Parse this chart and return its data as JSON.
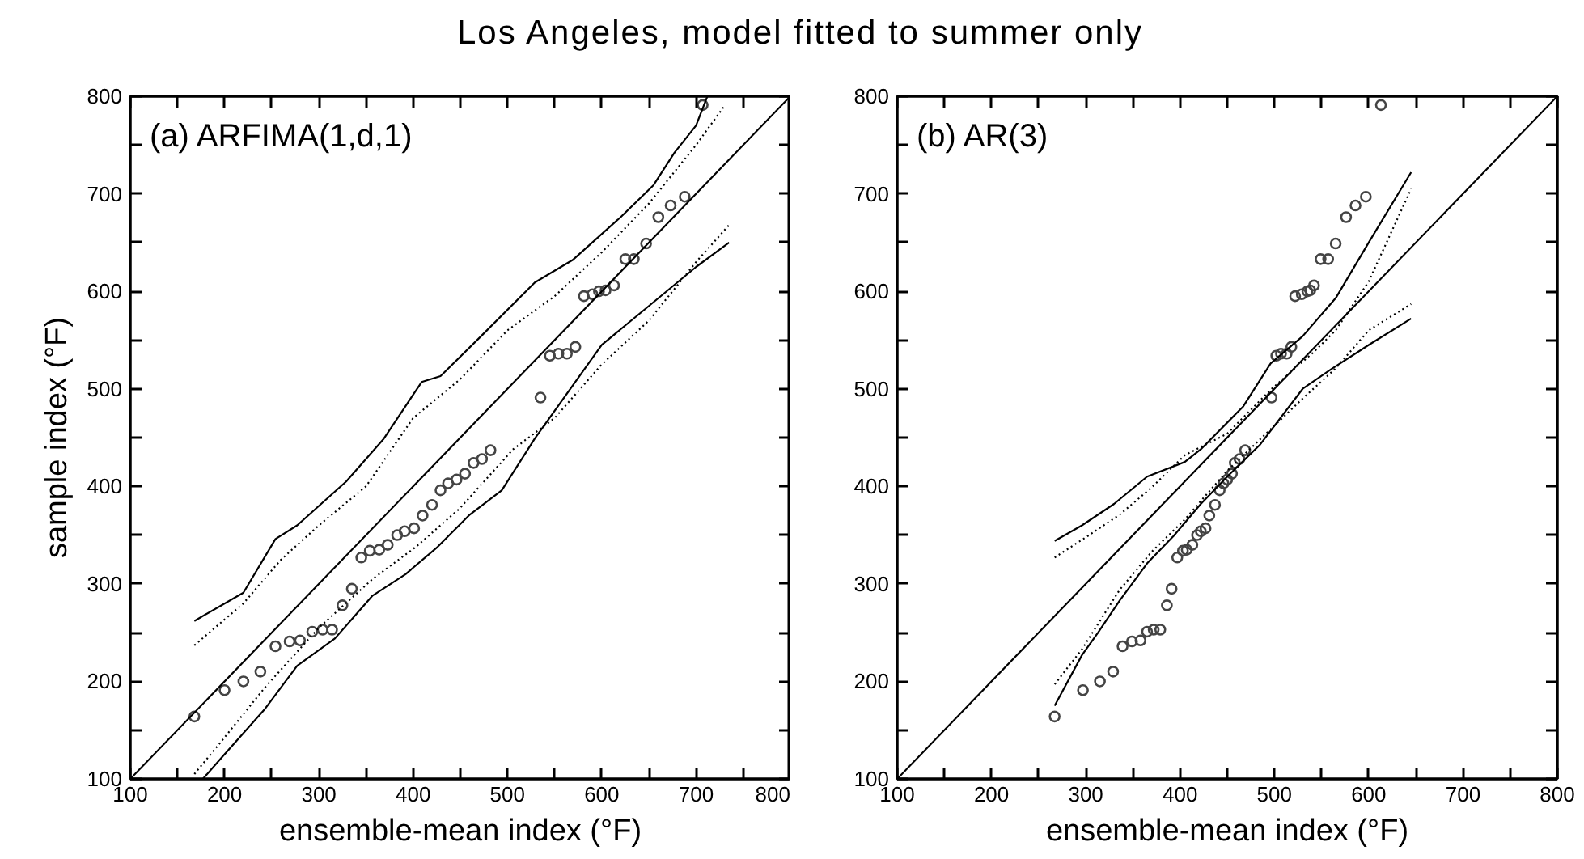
{
  "chart_data": [
    {
      "type": "scatter",
      "title": "(a) ARFIMA(1,d,1)",
      "annotations": [
        "Los Angeles, model fitted to summer only"
      ],
      "xlabel": "ensemble-mean index (°F)",
      "ylabel": "sample index (°F)",
      "xlim": [
        100,
        800
      ],
      "ylim": [
        100,
        800
      ],
      "xticks": [
        100,
        {
          "value": 150,
          "label": null
        },
        200,
        {
          "value": 250,
          "label": null
        },
        300,
        {
          "value": 350,
          "label": null
        },
        400,
        {
          "value": 450,
          "label": null
        },
        500,
        {
          "value": 550,
          "label": null
        },
        600,
        {
          "value": 650,
          "label": null
        },
        700,
        {
          "value": 750,
          "label": null
        },
        800
      ],
      "yticks": [
        100,
        {
          "value": 150,
          "label": null
        },
        200,
        {
          "value": 250,
          "label": null
        },
        300,
        {
          "value": 350,
          "label": null
        },
        400,
        {
          "value": 450,
          "label": null
        },
        500,
        {
          "value": 550,
          "label": null
        },
        600,
        {
          "value": 650,
          "label": null
        },
        700,
        {
          "value": 750,
          "label": null
        },
        800
      ],
      "grid": false,
      "series": [
        {
          "color": "#444444",
          "marker": "circle",
          "x": [
            168,
            200,
            220,
            238,
            254,
            269,
            280,
            293,
            304,
            314,
            325,
            335,
            345,
            354,
            364,
            373,
            383,
            391,
            401,
            410,
            420,
            429,
            437,
            446,
            455,
            464,
            473,
            482,
            535,
            545,
            554,
            563,
            572,
            581,
            590,
            597,
            604,
            613,
            625,
            634,
            647,
            660,
            673,
            688,
            707
          ],
          "values": [
            164,
            191,
            200,
            210,
            236,
            241,
            242,
            251,
            253,
            253,
            278,
            295,
            327,
            334,
            335,
            340,
            350,
            354,
            357,
            370,
            381,
            396,
            403,
            407,
            413,
            424,
            428,
            437,
            491,
            534,
            536,
            536,
            543,
            595,
            597,
            600,
            601,
            606,
            633,
            633,
            649,
            676,
            688,
            697,
            791
          ]
        },
        {
          "type": "line",
          "color": "#000000",
          "line_style": "solid",
          "x": [
            100,
            800
          ],
          "values": [
            100,
            800
          ]
        },
        {
          "type": "line",
          "color": "#000000",
          "line_style": "solid",
          "x": [
            168,
            220,
            254,
            277,
            329,
            369,
            409,
            429,
            472,
            529,
            569,
            620,
            655,
            677,
            700,
            712
          ],
          "values": [
            262,
            291,
            346,
            360,
            405,
            449,
            507,
            513,
            554,
            609,
            632,
            676,
            709,
            742,
            770,
            800
          ]
        },
        {
          "type": "line",
          "color": "#000000",
          "line_style": "dotted",
          "x": [
            168,
            220,
            260,
            300,
            350,
            400,
            450,
            500,
            550,
            600,
            650,
            700,
            730
          ],
          "values": [
            237,
            280,
            325,
            360,
            400,
            470,
            510,
            560,
            595,
            640,
            690,
            750,
            790
          ]
        },
        {
          "type": "line",
          "color": "#000000",
          "line_style": "solid",
          "x": [
            177,
            197,
            243,
            277,
            317,
            357,
            392,
            426,
            460,
            494,
            529,
            600,
            650,
            700,
            735
          ],
          "values": [
            100,
            122,
            172,
            216,
            244,
            288,
            310,
            338,
            371,
            396,
            449,
            545,
            585,
            625,
            650
          ]
        },
        {
          "type": "line",
          "color": "#000000",
          "line_style": "dotted",
          "x": [
            168,
            197,
            243,
            300,
            357,
            403,
            449,
            506,
            550,
            600,
            650,
            700,
            735
          ],
          "values": [
            105,
            139,
            194,
            255,
            305,
            338,
            377,
            438,
            470,
            525,
            570,
            630,
            668
          ]
        }
      ]
    },
    {
      "type": "scatter",
      "title": "(b) AR(3)",
      "xlabel": "ensemble-mean index (°F)",
      "xlim": [
        100,
        800
      ],
      "ylim": [
        100,
        800
      ],
      "xticks": [
        100,
        {
          "value": 150,
          "label": null
        },
        200,
        {
          "value": 250,
          "label": null
        },
        300,
        {
          "value": 350,
          "label": null
        },
        400,
        {
          "value": 450,
          "label": null
        },
        500,
        {
          "value": 550,
          "label": null
        },
        600,
        {
          "value": 650,
          "label": null
        },
        700,
        {
          "value": 750,
          "label": null
        },
        800
      ],
      "yticks": [
        100,
        {
          "value": 150,
          "label": null
        },
        200,
        {
          "value": 250,
          "label": null
        },
        300,
        {
          "value": 350,
          "label": null
        },
        400,
        {
          "value": 450,
          "label": null
        },
        500,
        {
          "value": 550,
          "label": null
        },
        600,
        {
          "value": 650,
          "label": null
        },
        700,
        {
          "value": 750,
          "label": null
        },
        800
      ],
      "grid": false,
      "series": [
        {
          "color": "#444444",
          "marker": "circle",
          "x": [
            267,
            297,
            315,
            329,
            339,
            349,
            358,
            365,
            372,
            379,
            386,
            391,
            397,
            403,
            407,
            413,
            418,
            422,
            427,
            431,
            437,
            442,
            446,
            450,
            455,
            458,
            463,
            469,
            497,
            502,
            507,
            513,
            518,
            522,
            529,
            535,
            538,
            542,
            549,
            557,
            565,
            576,
            586,
            597,
            613
          ],
          "values": [
            164,
            191,
            200,
            210,
            236,
            241,
            242,
            251,
            253,
            253,
            278,
            295,
            327,
            334,
            335,
            340,
            350,
            354,
            357,
            370,
            381,
            396,
            403,
            407,
            413,
            424,
            428,
            437,
            491,
            534,
            536,
            536,
            543,
            595,
            597,
            600,
            601,
            606,
            633,
            633,
            649,
            676,
            688,
            697,
            791
          ]
        },
        {
          "type": "line",
          "color": "#000000",
          "line_style": "solid",
          "x": [
            100,
            800
          ],
          "values": [
            100,
            800
          ]
        },
        {
          "type": "line",
          "color": "#000000",
          "line_style": "solid",
          "x": [
            267,
            296,
            330,
            365,
            405,
            422,
            467,
            496,
            530,
            565,
            600,
            645
          ],
          "values": [
            344,
            360,
            382,
            410,
            425,
            438,
            482,
            526,
            554,
            593,
            650,
            722
          ]
        },
        {
          "type": "line",
          "color": "#000000",
          "line_style": "dotted",
          "x": [
            267,
            302,
            336,
            370,
            405,
            450,
            496,
            542,
            565,
            600,
            645
          ],
          "values": [
            327,
            349,
            371,
            399,
            432,
            454,
            499,
            538,
            560,
            610,
            705
          ]
        },
        {
          "type": "line",
          "color": "#000000",
          "line_style": "solid",
          "x": [
            267,
            296,
            313,
            336,
            365,
            393,
            422,
            450,
            485,
            530,
            560,
            600,
            645
          ],
          "values": [
            175,
            227,
            250,
            283,
            321,
            349,
            382,
            410,
            443,
            500,
            520,
            545,
            572
          ]
        },
        {
          "type": "line",
          "color": "#000000",
          "line_style": "dotted",
          "x": [
            267,
            296,
            336,
            370,
            405,
            450,
            530,
            565,
            600,
            645
          ],
          "values": [
            197,
            233,
            294,
            333,
            366,
            416,
            490,
            521,
            560,
            587
          ]
        }
      ]
    }
  ]
}
